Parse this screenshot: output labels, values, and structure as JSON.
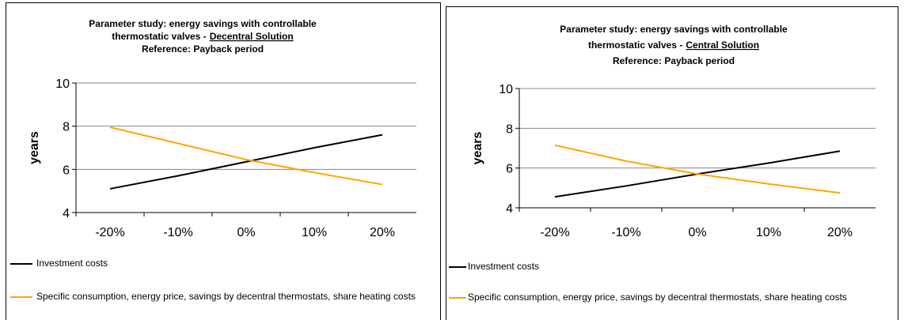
{
  "chart_data": [
    {
      "type": "line",
      "title": {
        "line1": "Parameter study: energy savings with controllable",
        "line2": "thermostatic valves -",
        "line2_underlined": "Decentral Solution",
        "line3": "Reference: Payback period"
      },
      "y_label": "years",
      "categories": [
        "-20%",
        "-10%",
        "0%",
        "10%",
        "20%"
      ],
      "series": [
        {
          "name": "Investment costs",
          "color": "#000000",
          "values": [
            5.1,
            5.7,
            6.35,
            7.0,
            7.6
          ]
        },
        {
          "name": "Specific consumption, energy price, savings by decentral thermostats, share heating costs",
          "color": "#ffa500",
          "values": [
            7.95,
            7.2,
            6.45,
            5.85,
            5.3
          ]
        }
      ],
      "ylim": [
        4,
        10
      ],
      "yticks": [
        4,
        6,
        8,
        10
      ],
      "grid": true,
      "legend": "bottom"
    },
    {
      "type": "line",
      "title": {
        "line1": "Parameter study: energy savings with controllable",
        "line2": "thermostatic valves -",
        "line2_underlined": "Central Solution",
        "line3": "Reference: Payback period"
      },
      "y_label": "years",
      "categories": [
        "-20%",
        "-10%",
        "0%",
        "10%",
        "20%"
      ],
      "series": [
        {
          "name": "Investment costs",
          "color": "#000000",
          "values": [
            4.55,
            5.1,
            5.7,
            6.25,
            6.85
          ]
        },
        {
          "name": "Specific consumption, energy price, savings by decentral thermostats, share heating costs",
          "color": "#ffa500",
          "values": [
            7.15,
            6.35,
            5.7,
            5.2,
            4.75
          ]
        }
      ],
      "ylim": [
        4,
        10
      ],
      "yticks": [
        4,
        6,
        8,
        10
      ],
      "grid": true,
      "legend": "bottom"
    }
  ]
}
